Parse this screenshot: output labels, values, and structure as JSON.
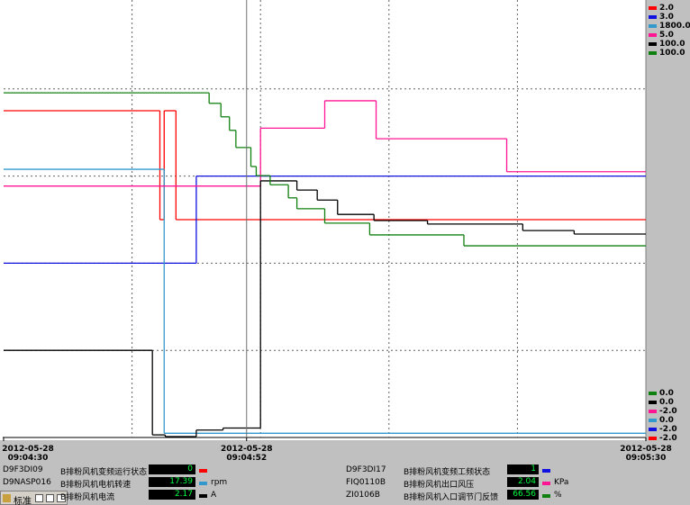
{
  "chart_data": {
    "type": "step",
    "xlim": [
      0,
      60
    ],
    "xticks": [
      {
        "value": 0,
        "label": "2012-05-28 09:04:30"
      },
      {
        "value": 22.7,
        "label": "2012-05-28 09:04:52"
      },
      {
        "value": 60,
        "label": "2012-05-28 09:05:30"
      }
    ],
    "xgrid": [
      12,
      24,
      36,
      48
    ],
    "ygrid_divisions": 5,
    "cursor": 22.7,
    "series": [
      {
        "name": "B排粉风机变频运行状态",
        "tag": "D9F3DI09",
        "color": "#ff0000",
        "ylim": [
          -2,
          2
        ],
        "yticks": [
          {
            "value": -2,
            "label": "-2.0"
          },
          {
            "value": 2,
            "label": "2.0"
          }
        ],
        "x": [
          0,
          14.6,
          15.0,
          16.1
        ],
        "values": [
          1,
          0,
          1,
          0
        ],
        "cursor_value": 0
      },
      {
        "name": "B排粉风机变频工频状态",
        "tag": "D9F3DI17",
        "color": "#1010e0",
        "ylim": [
          -2,
          3
        ],
        "yticks": [
          {
            "value": -2,
            "label": "-2.0"
          },
          {
            "value": 3,
            "label": "3.0"
          }
        ],
        "x": [
          0,
          18.0
        ],
        "values": [
          0,
          1
        ],
        "cursor_value": 1
      },
      {
        "name": "B排粉风机电机转速",
        "tag": "D9NASP016",
        "unit": "rpm",
        "color": "#3399cc",
        "ylim": [
          0,
          1800
        ],
        "yticks": [
          {
            "value": 0,
            "label": "0.0"
          },
          {
            "value": 1800,
            "label": "1800.0"
          }
        ],
        "x": [
          0,
          15.0
        ],
        "values": [
          1108,
          17.39
        ],
        "cursor_value": 17.39
      },
      {
        "name": "B排粉风机出口风压",
        "tag": "FIQ0110B",
        "unit": "KPa",
        "color": "#ff1493",
        "ylim": [
          -2,
          5
        ],
        "yticks": [
          {
            "value": -2,
            "label": "-2.0"
          },
          {
            "value": 5,
            "label": "5.0"
          }
        ],
        "x": [
          0,
          24.0,
          30.0,
          34.8,
          47.0
        ],
        "values": [
          2.04,
          2.97,
          3.41,
          2.8,
          2.27
        ],
        "cursor_value": 2.04
      },
      {
        "name": "B排粉风机电流",
        "unit": "A",
        "color": "#000000",
        "ylim": [
          0,
          100
        ],
        "yticks": [
          {
            "value": 0,
            "label": "0.0"
          },
          {
            "value": 100,
            "label": "100.0"
          }
        ],
        "x": [
          0,
          13.9,
          15.1,
          18.0,
          20.5,
          24.0,
          27.4,
          29.3,
          31.2,
          34.6,
          39.6,
          48.5,
          53.3
        ],
        "values": [
          20.0,
          0.6,
          0.2,
          1.7,
          2.17,
          58.9,
          56.8,
          54.5,
          51.2,
          49.8,
          49.0,
          47.5,
          46.7
        ],
        "cursor_value": 2.17
      },
      {
        "name": "B排粉风机入口调节门反馈",
        "tag": "ZI0106B",
        "unit": "%",
        "color": "#108010",
        "ylim": [
          0,
          100
        ],
        "yticks": [
          {
            "value": 0,
            "label": "0.0"
          },
          {
            "value": 100,
            "label": "100.0"
          }
        ],
        "x": [
          0,
          19.2,
          20.3,
          21.1,
          21.7,
          23.1,
          23.6,
          24.9,
          26.6,
          27.4,
          30.0,
          34.2,
          43.0
        ],
        "values": [
          79.1,
          76.7,
          73.6,
          70.5,
          66.56,
          62.2,
          60.1,
          58.0,
          55.0,
          52.5,
          49.2,
          46.5,
          44.0
        ],
        "cursor_value": 66.56
      }
    ]
  },
  "toolbar": {
    "label": "标准"
  }
}
